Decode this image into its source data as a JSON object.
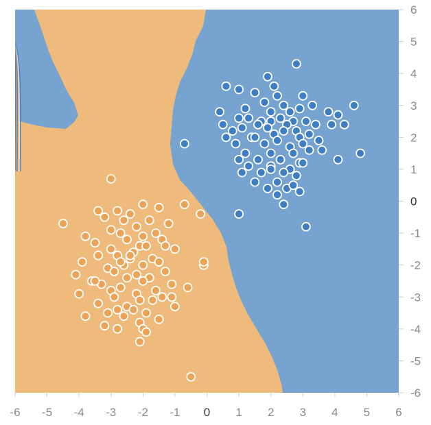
{
  "chart_data": {
    "type": "scatter",
    "title": "",
    "xlabel": "",
    "ylabel": "",
    "xlim": [
      -6,
      6
    ],
    "ylim": [
      -6,
      6
    ],
    "x_ticks": [
      -6,
      -5,
      -4,
      -3,
      -2,
      -1,
      0,
      1,
      2,
      3,
      4,
      5,
      6
    ],
    "y_ticks": [
      6,
      5,
      4,
      3,
      2,
      1,
      0,
      -1,
      -2,
      -3,
      -4,
      -5,
      -6
    ],
    "grid": false,
    "legend": "none",
    "colors": {
      "positive_region": "#77a3d0",
      "negative_region": "#efbb7c",
      "positive_point": "#3f7ec2",
      "negative_point": "#eba457",
      "point_stroke": "#ffffff",
      "axis_text": "#8a8a8a",
      "axis_zero_text": "#333333"
    },
    "decision_boundary_x": [
      {
        "y": 6.0,
        "x": -5.4
      },
      {
        "y": 5.0,
        "x": -5.0
      },
      {
        "y": 4.0,
        "x": -4.5
      },
      {
        "y": 3.0,
        "x": -4.0
      },
      {
        "y": 2.5,
        "x": -4.0
      },
      {
        "y": 2.45,
        "x": -6.0
      }
    ],
    "series": [
      {
        "class": "positive",
        "x": [
          2.8,
          1.9,
          2.1,
          0.6,
          1.0,
          1.5,
          3.0,
          2.2,
          4.6,
          2.4,
          1.8,
          3.3,
          2.9,
          1.2,
          0.4,
          2.0,
          2.6,
          3.8,
          4.1,
          1.0,
          1.3,
          2.3,
          3.1,
          1.7,
          2.0,
          2.7,
          0.5,
          1.6,
          2.5,
          3.4,
          3.9,
          4.3,
          1.1,
          1.9,
          2.4,
          0.8,
          2.8,
          3.2,
          2.1,
          1.4,
          0.6,
          1.5,
          2.9,
          3.5,
          2.2,
          1.8,
          3.0,
          0.9,
          2.6,
          4.8,
          3.2,
          4.1,
          1.2,
          2.0,
          2.7,
          3.6,
          1.0,
          1.6,
          2.3,
          2.9,
          1.3,
          2.0,
          2.6,
          3.0,
          1.7,
          2.4,
          1.1,
          2.8,
          2.2,
          1.5,
          2.5,
          1.9,
          -0.7,
          1.0,
          2.4,
          2.7,
          2.2,
          2.9,
          3.1,
          2.0
        ],
        "y": [
          4.3,
          3.9,
          3.6,
          3.6,
          3.5,
          3.4,
          3.3,
          3.3,
          3.0,
          3.0,
          3.1,
          3.0,
          2.9,
          2.9,
          2.8,
          2.8,
          2.8,
          2.8,
          2.7,
          2.6,
          2.6,
          2.6,
          2.5,
          2.5,
          2.5,
          2.5,
          2.4,
          2.4,
          2.4,
          2.4,
          2.4,
          2.4,
          2.3,
          2.3,
          2.2,
          2.2,
          2.2,
          2.1,
          2.1,
          2.0,
          2.0,
          2.0,
          2.0,
          1.9,
          1.9,
          1.8,
          1.8,
          1.8,
          1.7,
          1.5,
          1.6,
          1.3,
          1.5,
          1.5,
          1.5,
          1.6,
          1.3,
          1.3,
          1.3,
          1.2,
          1.1,
          1.1,
          1.0,
          1.2,
          0.9,
          0.9,
          0.9,
          0.8,
          0.6,
          0.6,
          0.4,
          0.4,
          1.8,
          -0.4,
          -0.1,
          0.5,
          0.2,
          0.3,
          -0.8,
          1.0
        ]
      },
      {
        "class": "negative",
        "x": [
          -3.0,
          -4.5,
          -2.0,
          -0.7,
          -1.5,
          -3.4,
          -2.8,
          -2.4,
          -0.2,
          -3.2,
          -2.6,
          -1.8,
          -1.2,
          -2.2,
          -3.0,
          -1.6,
          -2.7,
          -3.8,
          -2.0,
          -1.4,
          -2.5,
          -3.5,
          -2.1,
          -1.9,
          -3.0,
          -1.0,
          -2.3,
          -2.8,
          -3.4,
          -1.7,
          -2.4,
          -1.5,
          -3.9,
          -2.0,
          -2.6,
          -0.1,
          -3.1,
          -2.9,
          -1.3,
          -2.2,
          -4.1,
          -1.8,
          -2.5,
          -3.6,
          -2.0,
          -1.1,
          -3.3,
          -2.7,
          -0.6,
          -1.6,
          -3.0,
          -2.2,
          -4.0,
          -1.4,
          -2.9,
          -2.1,
          -1.7,
          -3.4,
          -2.5,
          -1.0,
          -2.8,
          -2.3,
          -3.1,
          -1.9,
          -2.6,
          -3.8,
          -1.5,
          -2.1,
          -0.1,
          -2.4,
          -1.1,
          -3.2,
          -2.0,
          -2.8,
          -0.5,
          -2.1,
          -3.5,
          -1.3,
          -2.7,
          -1.9
        ],
        "y": [
          0.7,
          -0.7,
          -0.1,
          -0.1,
          -0.2,
          -0.3,
          -0.3,
          -0.4,
          -0.4,
          -0.5,
          -0.6,
          -0.6,
          -0.7,
          -0.8,
          -0.9,
          -1.0,
          -1.0,
          -1.1,
          -1.1,
          -1.2,
          -1.2,
          -1.3,
          -1.4,
          -1.4,
          -1.5,
          -1.5,
          -1.6,
          -1.7,
          -1.7,
          -1.8,
          -1.8,
          -1.9,
          -1.9,
          -2.0,
          -2.0,
          -2.0,
          -2.1,
          -2.2,
          -2.2,
          -2.3,
          -2.3,
          -2.4,
          -2.4,
          -2.5,
          -2.5,
          -2.6,
          -2.6,
          -2.7,
          -2.7,
          -2.8,
          -2.8,
          -2.9,
          -2.9,
          -3.0,
          -3.0,
          -3.1,
          -3.1,
          -3.2,
          -3.3,
          -3.3,
          -3.4,
          -3.4,
          -3.5,
          -3.5,
          -3.6,
          -3.6,
          -3.7,
          -3.8,
          -1.9,
          -1.7,
          -3.0,
          -3.9,
          -4.0,
          -4.0,
          -5.5,
          -4.4,
          -2.5,
          -1.4,
          -1.9,
          -4.1
        ]
      }
    ]
  }
}
